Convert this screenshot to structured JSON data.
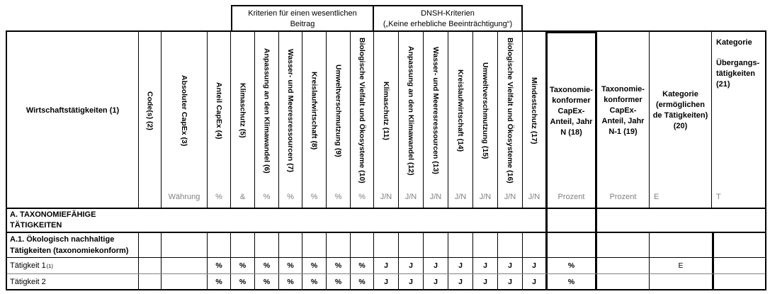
{
  "document": {
    "group_headers": {
      "contribution": {
        "line1": "Kriterien für einen wesentlichen",
        "line2": "Beitrag"
      },
      "dnsh": {
        "line1": "DNSH-Kriterien",
        "line2": "(„Keine erhebliche Beeinträchtigung“)"
      }
    },
    "columns": [
      {
        "label": "Wirtschaftstätigkeiten (1)",
        "unit": ""
      },
      {
        "label": "Code(s) (2)",
        "unit": ""
      },
      {
        "label": "Absoluter CapEx (3)",
        "unit": "Währung"
      },
      {
        "label": "Anteil CapEx (4)",
        "unit": "%"
      },
      {
        "label": "Klimaschutz (5)",
        "unit": "&"
      },
      {
        "label": "Anpassung an den Klimawandel (6)",
        "unit": "%"
      },
      {
        "label": "Wasser- und Meeresressourcen (7)",
        "unit": "%"
      },
      {
        "label": "Kreislaufwirtschaft (8)",
        "unit": "%"
      },
      {
        "label": "Umweltverschmutzung (9)",
        "unit": "%"
      },
      {
        "label": "Biologische Vielfalt und Ökosysteme (10)",
        "unit": "%"
      },
      {
        "label": "Klimaschutz (11)",
        "unit": "J/N"
      },
      {
        "label": "Anpassung an den Klimawandel (12)",
        "unit": "J/N"
      },
      {
        "label": "Wasser- und Meeresressourcen (13)",
        "unit": "J/N"
      },
      {
        "label": "Kreislaufwirtschaft (14)",
        "unit": "J/N"
      },
      {
        "label": "Umweltverschmutzung (15)",
        "unit": "J/N"
      },
      {
        "label": "Biologische Vielfalt und Ökosysteme (16)",
        "unit": "J/N"
      },
      {
        "label": "Mindestschutz (17)",
        "unit": "J/N"
      },
      {
        "label": "Taxonomie-konformer CapEx-Anteil, Jahr N (18)",
        "unit": "Prozent"
      },
      {
        "label": "Taxonomie-konformer CapEx-Anteil, Jahr N-1 (19)",
        "unit": "Prozent"
      },
      {
        "label": "Kategorie (ermöglichen de Tätigkeiten) (20)",
        "unit": "E"
      },
      {
        "label_top": "Kategorie",
        "label_bottom": "Übergangs-tätigkeiten (21)",
        "unit": "T"
      }
    ],
    "sections": [
      {
        "line1": "A. TAXONOMIEFÄHIGE",
        "line2": "TÄTIGKEITEN"
      },
      {
        "line1": "A.1. Ökologisch nachhaltige",
        "line2": "Tätigkeiten (taxonomiekonform)"
      }
    ],
    "activities": [
      {
        "label": "Tätigkeit 1",
        "sup": "(1)",
        "cells": [
          "",
          "",
          "%",
          "%",
          "%",
          "%",
          "%",
          "%",
          "%",
          "J",
          "J",
          "J",
          "J",
          "J",
          "J",
          "J",
          "%",
          "",
          "E",
          ""
        ]
      },
      {
        "label": "Tätigkeit 2",
        "sup": "",
        "cells": [
          "",
          "",
          "%",
          "%",
          "%",
          "%",
          "%",
          "%",
          "%",
          "J",
          "J",
          "J",
          "J",
          "J",
          "J",
          "J",
          "%",
          "",
          "",
          ""
        ]
      }
    ],
    "colors": {
      "text": "#000000",
      "unit_text": "#808080",
      "border": "#000000"
    }
  }
}
